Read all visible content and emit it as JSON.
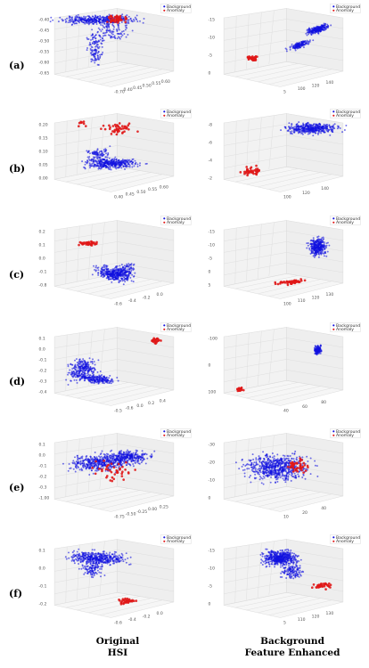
{
  "figure": {
    "columns": [
      {
        "line1": "Original",
        "line2": "HSI"
      },
      {
        "line1": "Background",
        "line2": "Feature Enhanced"
      }
    ],
    "rows": [
      {
        "label": "(a)"
      },
      {
        "label": "(b)"
      },
      {
        "label": "(c)"
      },
      {
        "label": "(d)"
      },
      {
        "label": "(e)"
      },
      {
        "label": "(f)"
      }
    ],
    "legend": {
      "background": "Background",
      "anomaly": "Anomaly"
    },
    "colors": {
      "background": "#1010e0",
      "anomaly": "#e01818",
      "pane": "#f2f2f2",
      "grid": "#dcdcdc"
    }
  },
  "chart_data": {
    "type": "scatter",
    "series": [
      {
        "name": "Background",
        "color": "#1010e0"
      },
      {
        "name": "Anomaly",
        "color": "#e01818"
      }
    ],
    "panels": [
      {
        "row": "(a)",
        "column": "Original HSI",
        "ticks": [
          "-0.40",
          "-0.45",
          "-0.50",
          "-0.55",
          "-0.60",
          "-0.65",
          "-0.70",
          "0.40",
          "0.45",
          "0.50",
          "0.55",
          "0.60"
        ]
      },
      {
        "row": "(a)",
        "column": "Background Feature Enhanced",
        "ticks": [
          "-15",
          "-10",
          "-5",
          "0",
          "5",
          "100",
          "120",
          "140"
        ]
      },
      {
        "row": "(b)",
        "column": "Original HSI",
        "ticks": [
          "0.20",
          "0.15",
          "0.10",
          "0.05",
          "0.00",
          "0.40",
          "0.45",
          "0.50",
          "0.55",
          "0.60"
        ]
      },
      {
        "row": "(b)",
        "column": "Background Feature Enhanced",
        "ticks": [
          "-8",
          "-6",
          "-4",
          "-2",
          "100",
          "120",
          "140"
        ]
      },
      {
        "row": "(c)",
        "column": "Original HSI",
        "ticks": [
          "0.2",
          "0.1",
          "0.0",
          "-0.1",
          "-0.8",
          "-0.6",
          "-0.4",
          "-0.2",
          "0.0"
        ]
      },
      {
        "row": "(c)",
        "column": "Background Feature Enhanced",
        "ticks": [
          "-15",
          "-10",
          "-5",
          "0",
          "5",
          "100",
          "110",
          "120",
          "130"
        ]
      },
      {
        "row": "(d)",
        "column": "Original HSI",
        "ticks": [
          "0.1",
          "0.0",
          "-0.1",
          "-0.2",
          "-0.3",
          "-0.4",
          "-0.5",
          "-0.6",
          "0.0",
          "0.2",
          "0.4"
        ]
      },
      {
        "row": "(d)",
        "column": "Background Feature Enhanced",
        "ticks": [
          "-100",
          "0",
          "100",
          "40",
          "60",
          "80"
        ]
      },
      {
        "row": "(e)",
        "column": "Original HSI",
        "ticks": [
          "0.1",
          "0.0",
          "-0.1",
          "-0.2",
          "-0.3",
          "-1.00",
          "-0.75",
          "-0.50",
          "-0.25",
          "0.00",
          "0.25"
        ]
      },
      {
        "row": "(e)",
        "column": "Background Feature Enhanced",
        "ticks": [
          "-30",
          "-20",
          "-10",
          "0",
          "10",
          "20",
          "40"
        ]
      },
      {
        "row": "(f)",
        "column": "Original HSI",
        "ticks": [
          "0.1",
          "0.0",
          "-0.1",
          "-0.2",
          "-0.6",
          "-0.4",
          "-0.2",
          "0.0"
        ]
      },
      {
        "row": "(f)",
        "column": "Background Feature Enhanced",
        "ticks": [
          "-15",
          "-10",
          "-5",
          "0",
          "5",
          "110",
          "120",
          "130"
        ]
      }
    ]
  }
}
